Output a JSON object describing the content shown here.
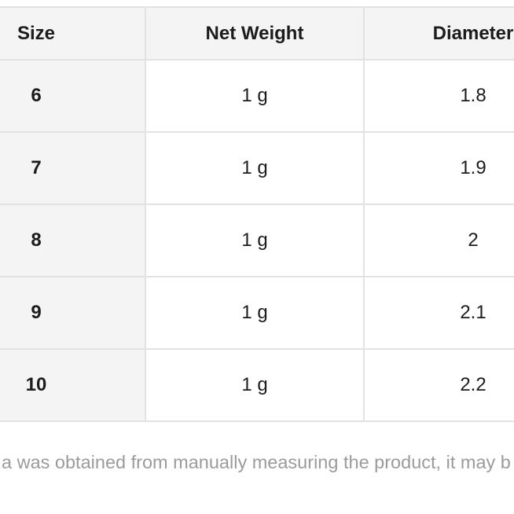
{
  "page": {
    "background": "#ffffff"
  },
  "colors": {
    "panel_bg": "#f4f4f4",
    "border_color": "#e2e2e2",
    "text_color": "#1c1c1c",
    "caption_color": "#9b9b9b"
  },
  "table": {
    "headers": [
      "Size",
      "Net Weight",
      "Diameter"
    ],
    "rows": [
      {
        "cells": [
          "6",
          "1 g",
          "1.8"
        ]
      },
      {
        "cells": [
          "7",
          "1 g",
          "1.9"
        ]
      },
      {
        "cells": [
          "8",
          "1 g",
          "2"
        ]
      },
      {
        "cells": [
          "9",
          "1 g",
          "2.1"
        ]
      },
      {
        "cells": [
          "10",
          "1 g",
          "2.2"
        ]
      }
    ]
  },
  "caption": {
    "text": "a was obtained from manually measuring the product, it may b"
  }
}
